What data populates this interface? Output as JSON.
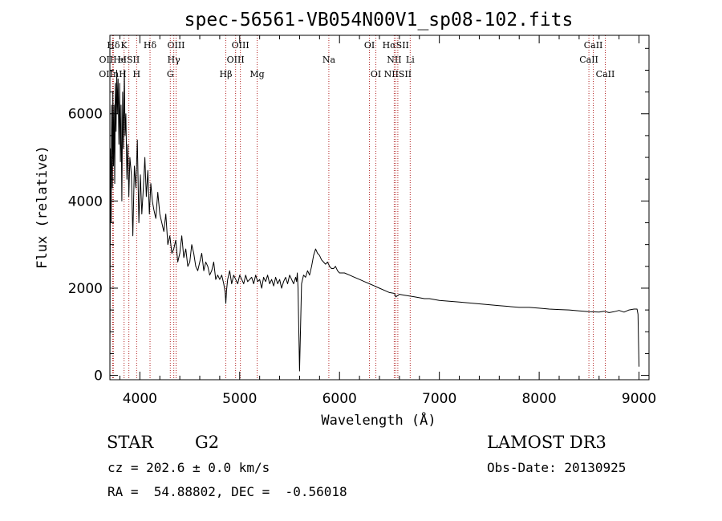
{
  "chart_data": {
    "type": "line",
    "title": "spec-56561-VB054N00V1_sp08-102.fits",
    "xlabel": "Wavelength (Å)",
    "ylabel": "Flux (relative)",
    "xlim": [
      3700,
      9100
    ],
    "ylim": [
      -100,
      7800
    ],
    "xticks": [
      4000,
      5000,
      6000,
      7000,
      8000,
      9000
    ],
    "yticks": [
      0,
      2000,
      4000,
      6000
    ],
    "series": [
      {
        "name": "spectrum",
        "x": [
          3700,
          3705,
          3712,
          3718,
          3725,
          3730,
          3736,
          3742,
          3748,
          3755,
          3762,
          3768,
          3775,
          3782,
          3790,
          3797,
          3805,
          3812,
          3820,
          3828,
          3836,
          3845,
          3852,
          3860,
          3870,
          3880,
          3890,
          3900,
          3915,
          3930,
          3945,
          3960,
          3975,
          3990,
          4005,
          4020,
          4035,
          4050,
          4065,
          4080,
          4095,
          4110,
          4125,
          4140,
          4160,
          4180,
          4200,
          4220,
          4240,
          4260,
          4280,
          4300,
          4320,
          4340,
          4360,
          4380,
          4400,
          4420,
          4440,
          4460,
          4480,
          4500,
          4520,
          4540,
          4560,
          4580,
          4600,
          4620,
          4640,
          4660,
          4680,
          4700,
          4720,
          4740,
          4760,
          4780,
          4800,
          4820,
          4840,
          4855,
          4861,
          4868,
          4880,
          4900,
          4920,
          4940,
          4960,
          4980,
          5000,
          5020,
          5040,
          5060,
          5080,
          5100,
          5120,
          5140,
          5160,
          5180,
          5200,
          5220,
          5240,
          5260,
          5280,
          5300,
          5320,
          5340,
          5360,
          5380,
          5400,
          5420,
          5440,
          5460,
          5480,
          5500,
          5520,
          5540,
          5560,
          5570,
          5577,
          5584,
          5600,
          5620,
          5640,
          5660,
          5680,
          5700,
          5720,
          5740,
          5760,
          5780,
          5800,
          5820,
          5840,
          5860,
          5880,
          5900,
          5920,
          5940,
          5960,
          5980,
          6000,
          6050,
          6100,
          6150,
          6200,
          6250,
          6300,
          6350,
          6400,
          6450,
          6500,
          6550,
          6563,
          6600,
          6650,
          6700,
          6750,
          6800,
          6850,
          6900,
          7000,
          7100,
          7200,
          7300,
          7400,
          7500,
          7600,
          7700,
          7800,
          7900,
          8000,
          8100,
          8200,
          8300,
          8400,
          8500,
          8600,
          8650,
          8700,
          8750,
          8800,
          8850,
          8900,
          8950,
          8980,
          8990,
          8995,
          9000
        ],
        "y": [
          0,
          5200,
          3500,
          6200,
          4300,
          6500,
          4800,
          6200,
          4400,
          6700,
          5600,
          7000,
          6000,
          6800,
          5300,
          6700,
          4900,
          6200,
          4000,
          6500,
          5200,
          7000,
          5500,
          6000,
          4500,
          5300,
          4100,
          5000,
          4600,
          3200,
          4800,
          4300,
          5400,
          3500,
          4600,
          3700,
          4300,
          5000,
          4100,
          4700,
          3700,
          4400,
          4000,
          3800,
          3600,
          4200,
          3700,
          3500,
          3300,
          3700,
          3000,
          3200,
          2800,
          2900,
          3100,
          2600,
          2800,
          3200,
          2700,
          2900,
          2500,
          2600,
          3000,
          2800,
          2500,
          2400,
          2600,
          2800,
          2400,
          2600,
          2500,
          2300,
          2400,
          2600,
          2200,
          2300,
          2200,
          2300,
          2100,
          1900,
          1650,
          1950,
          2200,
          2400,
          2100,
          2300,
          2200,
          2100,
          2300,
          2200,
          2100,
          2300,
          2150,
          2200,
          2250,
          2100,
          2300,
          2150,
          2200,
          2000,
          2250,
          2150,
          2300,
          2100,
          2200,
          2050,
          2250,
          2100,
          2200,
          2000,
          2150,
          2250,
          2100,
          2300,
          2200,
          2100,
          2250,
          2150,
          2350,
          2000,
          100,
          2100,
          2300,
          2250,
          2400,
          2300,
          2500,
          2750,
          2900,
          2800,
          2750,
          2650,
          2600,
          2550,
          2600,
          2500,
          2450,
          2450,
          2500,
          2400,
          2350,
          2350,
          2300,
          2250,
          2200,
          2150,
          2100,
          2050,
          2000,
          1950,
          1900,
          1880,
          1800,
          1860,
          1840,
          1820,
          1800,
          1780,
          1760,
          1760,
          1720,
          1700,
          1680,
          1660,
          1640,
          1620,
          1600,
          1580,
          1560,
          1560,
          1540,
          1520,
          1510,
          1500,
          1480,
          1460,
          1450,
          1470,
          1440,
          1460,
          1490,
          1450,
          1500,
          1520,
          1520,
          1400,
          800,
          200
        ]
      }
    ],
    "line_markers": [
      {
        "label": "Hδ",
        "x": 3735,
        "row": 0
      },
      {
        "label": "K",
        "x": 3842,
        "row": 0
      },
      {
        "label": "Hδ",
        "x": 4102,
        "row": 0
      },
      {
        "label": "OIII",
        "x": 4363,
        "row": 0
      },
      {
        "label": "OIII",
        "x": 5007,
        "row": 0
      },
      {
        "label": "OI",
        "x": 6300,
        "row": 0
      },
      {
        "label": "HαSII",
        "x": 6563,
        "row": 0
      },
      {
        "label": "CaII",
        "x": 8542,
        "row": 0
      },
      {
        "label": "OIIHe",
        "x": 3727,
        "row": 1
      },
      {
        "label": "eISII",
        "x": 3890,
        "row": 1
      },
      {
        "label": "Hγ",
        "x": 4340,
        "row": 1
      },
      {
        "label": "OIII",
        "x": 4959,
        "row": 1
      },
      {
        "label": "Na",
        "x": 5893,
        "row": 1
      },
      {
        "label": "NII",
        "x": 6548,
        "row": 1
      },
      {
        "label": "Li",
        "x": 6708,
        "row": 1
      },
      {
        "label": "CaII",
        "x": 8498,
        "row": 1
      },
      {
        "label": "OIInH",
        "x": 3728,
        "row": 2
      },
      {
        "label": "H",
        "x": 3968,
        "row": 2
      },
      {
        "label": "G",
        "x": 4305,
        "row": 2
      },
      {
        "label": "Hβ",
        "x": 4861,
        "row": 2
      },
      {
        "label": "Mg",
        "x": 5175,
        "row": 2
      },
      {
        "label": "OI",
        "x": 6364,
        "row": 2
      },
      {
        "label": "NIISII",
        "x": 6584,
        "row": 2
      },
      {
        "label": "CaII",
        "x": 8662,
        "row": 2
      }
    ],
    "marker_color": "#b22222"
  },
  "info": {
    "object_class": "STAR",
    "subclass": "G2",
    "redshift": "cz = 202.6 ± 0.0 km/s",
    "coords": "RA =  54.88802, DEC =  -0.56018",
    "survey": "LAMOST DR3",
    "obs_date": "Obs-Date: 20130925"
  }
}
